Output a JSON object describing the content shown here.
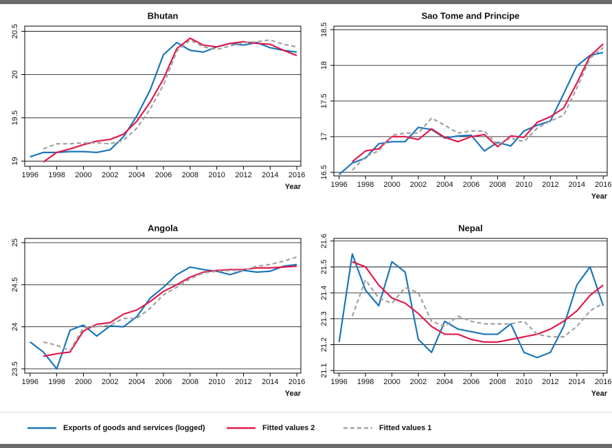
{
  "chart_data": [
    {
      "type": "line",
      "title": "Bhutan",
      "x_label": "Year",
      "x": [
        1996,
        1997,
        1998,
        1999,
        2000,
        2001,
        2002,
        2003,
        2004,
        2005,
        2006,
        2007,
        2008,
        2009,
        2010,
        2011,
        2012,
        2013,
        2014,
        2015,
        2016
      ],
      "xlim": [
        1995.6,
        2016.3
      ],
      "xticks": [
        1996,
        1998,
        2000,
        2002,
        2004,
        2006,
        2008,
        2010,
        2012,
        2014,
        2016
      ],
      "ylim": [
        18.94,
        20.56
      ],
      "yticks": [
        19,
        19.5,
        20,
        20.5
      ],
      "grid": true,
      "series": [
        {
          "name": "Exports of goods and services (logged)",
          "color": "#1a75bb",
          "dashed": false,
          "values": [
            19.05,
            19.1,
            19.1,
            19.11,
            19.11,
            19.1,
            19.13,
            19.28,
            19.52,
            19.82,
            20.23,
            20.37,
            20.28,
            20.26,
            20.32,
            20.36,
            20.34,
            20.37,
            20.31,
            20.28,
            20.26
          ]
        },
        {
          "name": "Fitted values 2",
          "color": "#e0194b",
          "dashed": false,
          "values": [
            null,
            18.99,
            19.1,
            19.14,
            19.19,
            19.23,
            19.25,
            19.31,
            19.46,
            19.68,
            19.95,
            20.3,
            20.42,
            20.34,
            20.32,
            20.36,
            20.38,
            20.36,
            20.35,
            20.28,
            20.22
          ]
        },
        {
          "name": "Fitted values 1",
          "color": "#a0a0a0",
          "dashed": true,
          "values": [
            null,
            19.14,
            19.2,
            19.2,
            19.21,
            19.21,
            19.2,
            19.24,
            19.38,
            19.6,
            19.88,
            20.27,
            20.4,
            20.32,
            20.29,
            20.33,
            20.37,
            20.38,
            20.4,
            20.35,
            20.32
          ]
        }
      ]
    },
    {
      "type": "line",
      "title": "Sao Tome and Principe",
      "x_label": "Year",
      "x": [
        1996,
        1997,
        1998,
        1999,
        2000,
        2001,
        2002,
        2003,
        2004,
        2005,
        2006,
        2007,
        2008,
        2009,
        2010,
        2011,
        2012,
        2013,
        2014,
        2015,
        2016
      ],
      "xlim": [
        1995.6,
        2016.3
      ],
      "xticks": [
        1996,
        1998,
        2000,
        2002,
        2004,
        2006,
        2008,
        2010,
        2012,
        2014,
        2016
      ],
      "ylim": [
        16.45,
        18.55
      ],
      "yticks": [
        16.5,
        17,
        17.5,
        18,
        18.5
      ],
      "grid": true,
      "series": [
        {
          "name": "Exports of goods and services (logged)",
          "color": "#1a75bb",
          "dashed": false,
          "values": [
            16.47,
            16.63,
            16.7,
            16.9,
            16.93,
            16.93,
            17.13,
            17.1,
            16.98,
            17.01,
            17.02,
            16.8,
            16.92,
            16.87,
            17.08,
            17.16,
            17.22,
            17.6,
            17.99,
            18.14,
            18.18
          ]
        },
        {
          "name": "Fitted values 2",
          "color": "#e0194b",
          "dashed": false,
          "values": [
            null,
            16.65,
            16.8,
            16.83,
            17.0,
            17.0,
            16.96,
            17.11,
            16.99,
            16.93,
            17.0,
            17.03,
            16.86,
            17.01,
            16.99,
            17.2,
            17.28,
            17.4,
            17.75,
            18.13,
            18.3
          ]
        },
        {
          "name": "Fitted values 1",
          "color": "#a0a0a0",
          "dashed": true,
          "values": [
            null,
            16.53,
            16.72,
            16.8,
            17.02,
            17.05,
            17.05,
            17.26,
            17.16,
            17.05,
            17.08,
            17.08,
            16.89,
            16.98,
            16.93,
            17.12,
            17.22,
            17.3,
            17.68,
            18.1,
            18.25
          ]
        }
      ]
    },
    {
      "type": "line",
      "title": "Angola",
      "x_label": "Year",
      "x": [
        1996,
        1997,
        1998,
        1999,
        2000,
        2001,
        2002,
        2003,
        2004,
        2005,
        2006,
        2007,
        2008,
        2009,
        2010,
        2011,
        2012,
        2013,
        2014,
        2015,
        2016
      ],
      "xlim": [
        1995.6,
        2016.3
      ],
      "xticks": [
        1996,
        1998,
        2000,
        2002,
        2004,
        2006,
        2008,
        2010,
        2012,
        2014,
        2016
      ],
      "ylim": [
        23.45,
        25.05
      ],
      "yticks": [
        23.5,
        24,
        24.5,
        25
      ],
      "grid": true,
      "series": [
        {
          "name": "Exports of goods and services (logged)",
          "color": "#1a75bb",
          "dashed": false,
          "values": [
            23.82,
            23.7,
            23.5,
            23.96,
            24.02,
            23.89,
            24.01,
            24.0,
            24.12,
            24.34,
            24.47,
            24.62,
            24.71,
            24.68,
            24.66,
            24.62,
            24.67,
            24.65,
            24.66,
            24.72,
            24.74
          ]
        },
        {
          "name": "Fitted values 2",
          "color": "#e0194b",
          "dashed": false,
          "values": [
            null,
            23.65,
            23.68,
            23.7,
            23.95,
            24.03,
            24.05,
            24.15,
            24.2,
            24.3,
            24.42,
            24.5,
            24.59,
            24.65,
            24.67,
            24.68,
            24.68,
            24.7,
            24.7,
            24.71,
            24.72
          ]
        },
        {
          "name": "Fitted values 1",
          "color": "#a0a0a0",
          "dashed": true,
          "values": [
            null,
            23.82,
            23.78,
            23.72,
            23.99,
            24.0,
            24.02,
            24.1,
            24.1,
            24.22,
            24.38,
            24.47,
            24.57,
            24.64,
            24.66,
            24.67,
            24.67,
            24.72,
            24.74,
            24.78,
            24.83
          ]
        }
      ]
    },
    {
      "type": "line",
      "title": "Nepal",
      "x_label": "Year",
      "x": [
        1996,
        1997,
        1998,
        1999,
        2000,
        2001,
        2002,
        2003,
        2004,
        2005,
        2006,
        2007,
        2008,
        2009,
        2010,
        2011,
        2012,
        2013,
        2014,
        2015,
        2016
      ],
      "xlim": [
        1995.6,
        2016.3
      ],
      "xticks": [
        1996,
        1998,
        2000,
        2002,
        2004,
        2006,
        2008,
        2010,
        2012,
        2014,
        2016
      ],
      "ylim": [
        21.09,
        21.61
      ],
      "yticks": [
        21.1,
        21.2,
        21.3,
        21.4,
        21.5,
        21.6
      ],
      "grid": true,
      "series": [
        {
          "name": "Exports of goods and services (logged)",
          "color": "#1a75bb",
          "dashed": false,
          "values": [
            21.21,
            21.55,
            21.41,
            21.35,
            21.52,
            21.48,
            21.22,
            21.17,
            21.29,
            21.26,
            21.25,
            21.24,
            21.24,
            21.28,
            21.17,
            21.15,
            21.17,
            21.27,
            21.43,
            21.5,
            21.35
          ]
        },
        {
          "name": "Fitted values 2",
          "color": "#e0194b",
          "dashed": false,
          "values": [
            null,
            21.52,
            21.5,
            21.43,
            21.38,
            21.36,
            21.32,
            21.27,
            21.24,
            21.24,
            21.22,
            21.21,
            21.21,
            21.22,
            21.23,
            21.24,
            21.26,
            21.29,
            21.33,
            21.39,
            21.43
          ]
        },
        {
          "name": "Fitted values 1",
          "color": "#a0a0a0",
          "dashed": true,
          "values": [
            null,
            21.31,
            21.45,
            21.38,
            21.36,
            21.42,
            21.4,
            21.29,
            21.27,
            21.31,
            21.29,
            21.28,
            21.28,
            21.28,
            21.29,
            21.24,
            21.23,
            21.23,
            21.27,
            21.33,
            21.36
          ]
        }
      ]
    }
  ]
}
